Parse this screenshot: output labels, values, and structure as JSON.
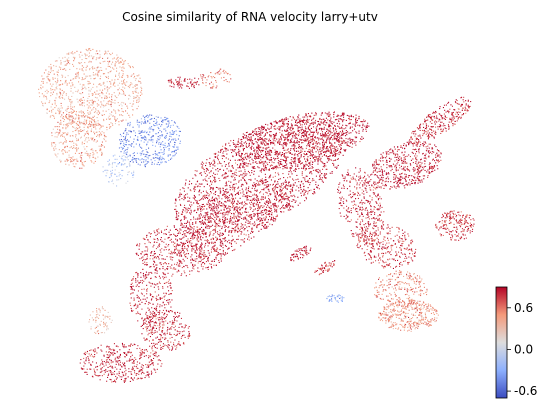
{
  "chart_data": {
    "type": "scatter",
    "title": "Cosine similarity of RNA velocity larry+utv",
    "xlabel": "",
    "ylabel": "",
    "grid": false,
    "axes_visible": false,
    "colormap": "coolwarm",
    "color_range": [
      -0.7,
      0.9
    ],
    "colorbar": {
      "placement": "bottom-right",
      "ticks": [
        0.6,
        0.0,
        -0.6
      ],
      "tick_labels": [
        "0.6",
        "0.0",
        "-0.6"
      ]
    },
    "regions": [
      {
        "value": 0.4
      },
      {
        "value": 0.45
      },
      {
        "value": -0.45
      },
      {
        "value": -0.1
      },
      {
        "value": 0.85
      },
      {
        "value": 0.88
      },
      {
        "value": 0.85
      },
      {
        "value": 0.8
      },
      {
        "value": 0.82
      },
      {
        "value": 0.8
      },
      {
        "value": 0.82
      },
      {
        "value": 0.85
      },
      {
        "value": 0.8
      },
      {
        "value": 0.75
      },
      {
        "value": 0.82
      },
      {
        "value": 0.78
      },
      {
        "value": 0.55
      },
      {
        "value": 0.5
      },
      {
        "value": 0.35
      },
      {
        "value": 0.85
      },
      {
        "value": 0.75
      },
      {
        "value": 0.6
      },
      {
        "value": 0.8
      },
      {
        "value": -0.3
      }
    ]
  }
}
